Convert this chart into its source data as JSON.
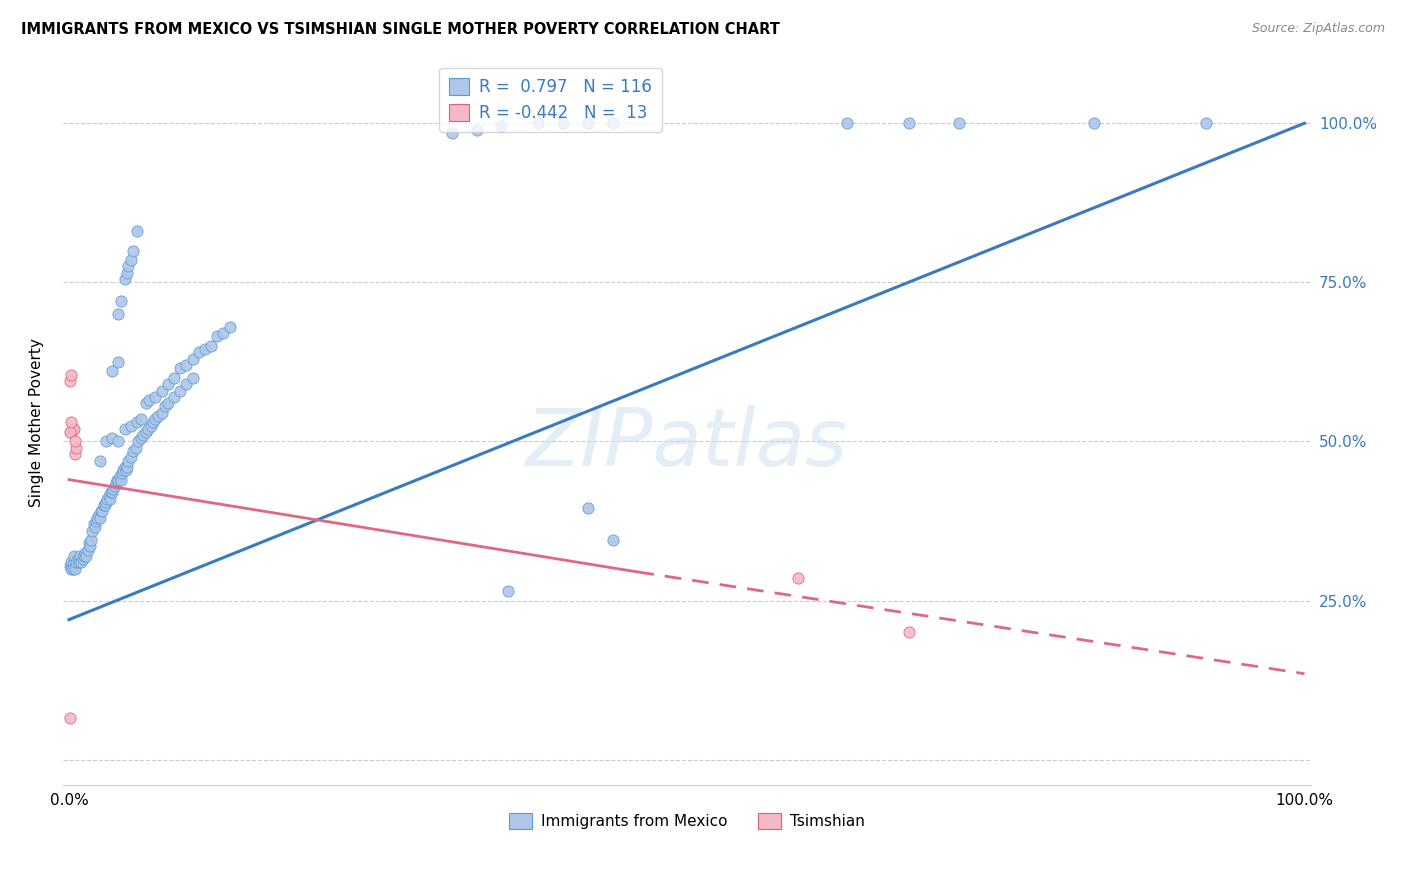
{
  "title": "IMMIGRANTS FROM MEXICO VS TSIMSHIAN SINGLE MOTHER POVERTY CORRELATION CHART",
  "source": "Source: ZipAtlas.com",
  "ylabel": "Single Mother Poverty",
  "legend_label1": "Immigrants from Mexico",
  "legend_label2": "Tsimshian",
  "R1": 0.797,
  "N1": 116,
  "R2": -0.442,
  "N2": 13,
  "blue_color": "#aec6e8",
  "blue_edge_color": "#5b9bd5",
  "pink_color": "#f4b8c8",
  "pink_edge_color": "#e0607a",
  "blue_line_color": "#3a7abf",
  "pink_line_color": "#e06880",
  "watermark": "ZIPatlas",
  "blue_line": [
    0.0,
    0.22,
    1.0,
    1.0
  ],
  "pink_line_solid": [
    0.0,
    0.44,
    0.46,
    0.295
  ],
  "pink_line_dash": [
    0.46,
    0.295,
    1.0,
    0.135
  ],
  "blue_scatter": [
    [
      0.001,
      0.305
    ],
    [
      0.002,
      0.31
    ],
    [
      0.002,
      0.3
    ],
    [
      0.003,
      0.308
    ],
    [
      0.003,
      0.3
    ],
    [
      0.004,
      0.32
    ],
    [
      0.005,
      0.3
    ],
    [
      0.006,
      0.31
    ],
    [
      0.007,
      0.315
    ],
    [
      0.008,
      0.31
    ],
    [
      0.009,
      0.32
    ],
    [
      0.01,
      0.31
    ],
    [
      0.011,
      0.315
    ],
    [
      0.012,
      0.32
    ],
    [
      0.013,
      0.325
    ],
    [
      0.014,
      0.32
    ],
    [
      0.015,
      0.33
    ],
    [
      0.016,
      0.34
    ],
    [
      0.017,
      0.335
    ],
    [
      0.018,
      0.345
    ],
    [
      0.019,
      0.36
    ],
    [
      0.02,
      0.37
    ],
    [
      0.021,
      0.365
    ],
    [
      0.022,
      0.375
    ],
    [
      0.023,
      0.38
    ],
    [
      0.024,
      0.385
    ],
    [
      0.025,
      0.38
    ],
    [
      0.026,
      0.39
    ],
    [
      0.027,
      0.39
    ],
    [
      0.028,
      0.4
    ],
    [
      0.029,
      0.4
    ],
    [
      0.03,
      0.405
    ],
    [
      0.031,
      0.41
    ],
    [
      0.032,
      0.415
    ],
    [
      0.033,
      0.41
    ],
    [
      0.034,
      0.42
    ],
    [
      0.035,
      0.42
    ],
    [
      0.036,
      0.425
    ],
    [
      0.037,
      0.43
    ],
    [
      0.038,
      0.435
    ],
    [
      0.039,
      0.44
    ],
    [
      0.04,
      0.44
    ],
    [
      0.041,
      0.445
    ],
    [
      0.042,
      0.44
    ],
    [
      0.043,
      0.45
    ],
    [
      0.044,
      0.455
    ],
    [
      0.045,
      0.46
    ],
    [
      0.046,
      0.455
    ],
    [
      0.047,
      0.46
    ],
    [
      0.048,
      0.47
    ],
    [
      0.05,
      0.475
    ],
    [
      0.052,
      0.485
    ],
    [
      0.054,
      0.49
    ],
    [
      0.056,
      0.5
    ],
    [
      0.058,
      0.505
    ],
    [
      0.06,
      0.51
    ],
    [
      0.062,
      0.515
    ],
    [
      0.064,
      0.52
    ],
    [
      0.066,
      0.525
    ],
    [
      0.068,
      0.53
    ],
    [
      0.07,
      0.535
    ],
    [
      0.072,
      0.54
    ],
    [
      0.075,
      0.545
    ],
    [
      0.078,
      0.555
    ],
    [
      0.08,
      0.56
    ],
    [
      0.085,
      0.57
    ],
    [
      0.09,
      0.58
    ],
    [
      0.095,
      0.59
    ],
    [
      0.1,
      0.6
    ],
    [
      0.025,
      0.47
    ],
    [
      0.03,
      0.5
    ],
    [
      0.035,
      0.505
    ],
    [
      0.04,
      0.5
    ],
    [
      0.045,
      0.52
    ],
    [
      0.05,
      0.525
    ],
    [
      0.055,
      0.53
    ],
    [
      0.058,
      0.535
    ],
    [
      0.062,
      0.56
    ],
    [
      0.065,
      0.565
    ],
    [
      0.07,
      0.57
    ],
    [
      0.075,
      0.58
    ],
    [
      0.08,
      0.59
    ],
    [
      0.085,
      0.6
    ],
    [
      0.09,
      0.615
    ],
    [
      0.095,
      0.62
    ],
    [
      0.1,
      0.63
    ],
    [
      0.105,
      0.64
    ],
    [
      0.11,
      0.645
    ],
    [
      0.115,
      0.65
    ],
    [
      0.12,
      0.665
    ],
    [
      0.125,
      0.67
    ],
    [
      0.13,
      0.68
    ],
    [
      0.035,
      0.61
    ],
    [
      0.04,
      0.625
    ],
    [
      0.04,
      0.7
    ],
    [
      0.042,
      0.72
    ],
    [
      0.045,
      0.755
    ],
    [
      0.047,
      0.765
    ],
    [
      0.048,
      0.775
    ],
    [
      0.05,
      0.785
    ],
    [
      0.052,
      0.8
    ],
    [
      0.055,
      0.83
    ],
    [
      0.31,
      0.985
    ],
    [
      0.33,
      0.99
    ],
    [
      0.35,
      0.995
    ],
    [
      0.38,
      1.0
    ],
    [
      0.4,
      1.0
    ],
    [
      0.42,
      1.0
    ],
    [
      0.44,
      1.0
    ],
    [
      0.63,
      1.0
    ],
    [
      0.68,
      1.0
    ],
    [
      0.72,
      1.0
    ],
    [
      0.83,
      1.0
    ],
    [
      0.92,
      1.0
    ],
    [
      0.355,
      0.265
    ],
    [
      0.42,
      0.395
    ],
    [
      0.44,
      0.345
    ]
  ],
  "pink_scatter": [
    [
      0.001,
      0.595
    ],
    [
      0.002,
      0.605
    ],
    [
      0.002,
      0.515
    ],
    [
      0.003,
      0.52
    ],
    [
      0.004,
      0.52
    ],
    [
      0.001,
      0.515
    ],
    [
      0.002,
      0.53
    ],
    [
      0.59,
      0.285
    ],
    [
      0.68,
      0.2
    ],
    [
      0.001,
      0.065
    ],
    [
      0.005,
      0.48
    ],
    [
      0.006,
      0.49
    ],
    [
      0.005,
      0.5
    ]
  ],
  "ylim": [
    -0.04,
    1.1
  ],
  "xlim": [
    -0.005,
    1.005
  ]
}
